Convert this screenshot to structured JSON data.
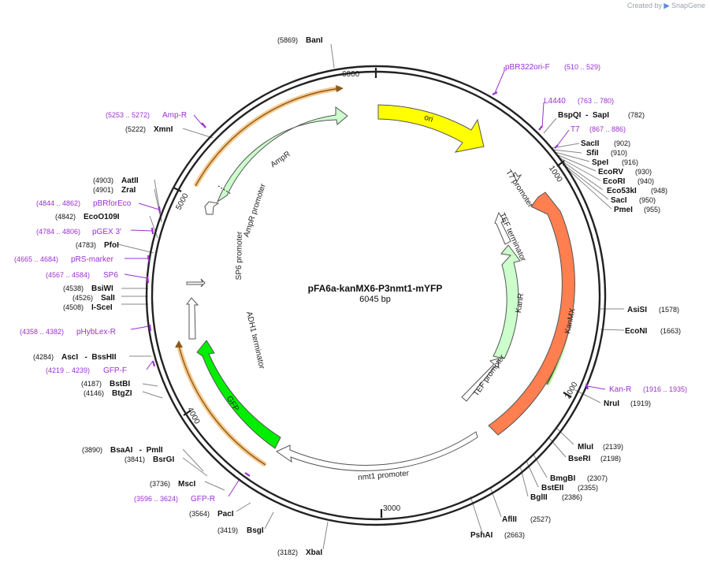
{
  "attribution": {
    "created_by": "Created by",
    "brand": "SnapGene"
  },
  "plasmid": {
    "name": "pFA6a-kanMX6-P3nmt1-mYFP",
    "size_label": "6045 bp",
    "length": 6045
  },
  "ticks": [
    "1000",
    "2000",
    "3000",
    "4000",
    "5000",
    "6000"
  ],
  "features": [
    {
      "id": "ori",
      "label": "ori",
      "color": "#ffff00"
    },
    {
      "id": "kanmx",
      "label": "KanMX",
      "color": "#ff7f50"
    },
    {
      "id": "kanr",
      "label": "KanR",
      "color": "#ccffcc"
    },
    {
      "id": "gfp",
      "label": "GFP",
      "color": "#00ee00"
    },
    {
      "id": "ampr",
      "label": "AmpR",
      "color": "#ccffcc"
    }
  ],
  "promoter_labels": {
    "t7": "T7 promoter",
    "tef_term": "TEF terminator",
    "tef_prom": "TEF promoter",
    "nmt1": "nmt1 promoter",
    "adh1": "ADH1 terminator",
    "sp6": "SP6 promoter",
    "ampr_prom": "AmpR promoter"
  },
  "enzymes": [
    {
      "pos": "(5869)",
      "name": "BanI"
    },
    {
      "pos": "(782)",
      "name": "BspQI  -  SapI"
    },
    {
      "pos": "(902)",
      "name": "SacII"
    },
    {
      "pos": "(910)",
      "name": "SfiI"
    },
    {
      "pos": "(916)",
      "name": "SpeI"
    },
    {
      "pos": "(930)",
      "name": "EcoRV"
    },
    {
      "pos": "(940)",
      "name": "EcoRI"
    },
    {
      "pos": "(948)",
      "name": "Eco53kI"
    },
    {
      "pos": "(950)",
      "name": "SacI"
    },
    {
      "pos": "(955)",
      "name": "PmeI"
    },
    {
      "pos": "(1578)",
      "name": "AsiSI"
    },
    {
      "pos": "(1663)",
      "name": "EcoNI"
    },
    {
      "pos": "(1919)",
      "name": "NruI"
    },
    {
      "pos": "(2139)",
      "name": "MluI"
    },
    {
      "pos": "(2198)",
      "name": "BseRI"
    },
    {
      "pos": "(2307)",
      "name": "BmgBI"
    },
    {
      "pos": "(2355)",
      "name": "BstEII"
    },
    {
      "pos": "(2386)",
      "name": "BglII"
    },
    {
      "pos": "(2527)",
      "name": "AflII"
    },
    {
      "pos": "(2663)",
      "name": "PshAI"
    },
    {
      "pos": "(3182)",
      "name": "XbaI"
    },
    {
      "pos": "(3419)",
      "name": "BsgI"
    },
    {
      "pos": "(3564)",
      "name": "PacI"
    },
    {
      "pos": "(3736)",
      "name": "MscI"
    },
    {
      "pos": "(3841)",
      "name": "BsrGI"
    },
    {
      "pos": "(3890)",
      "name": "BsaAI   -  PmlI"
    },
    {
      "pos": "(4146)",
      "name": "BtgZI"
    },
    {
      "pos": "(4187)",
      "name": "BstBI"
    },
    {
      "pos": "(4284)",
      "name": "AscI   -  BssHII"
    },
    {
      "pos": "(4508)",
      "name": "I-SceI"
    },
    {
      "pos": "(4526)",
      "name": "SalI"
    },
    {
      "pos": "(4538)",
      "name": "BsiWI"
    },
    {
      "pos": "(4783)",
      "name": "PfoI"
    },
    {
      "pos": "(4842)",
      "name": "EcoO109I"
    },
    {
      "pos": "(4901)",
      "name": "ZraI"
    },
    {
      "pos": "(4903)",
      "name": "AatII"
    },
    {
      "pos": "(5222)",
      "name": "XmnI"
    }
  ],
  "primers": [
    {
      "name": "pBR322ori-F",
      "range": "(510 .. 529)"
    },
    {
      "name": "L4440",
      "range": "(763 .. 780)"
    },
    {
      "name": "T7",
      "range": "(867 .. 886)"
    },
    {
      "name": "Kan-R",
      "range": "(1916 .. 1935)"
    },
    {
      "name": "GFP-R",
      "range": "(3596 .. 3624)"
    },
    {
      "name": "GFP-F",
      "range": "(4219 .. 4239)"
    },
    {
      "name": "pHybLex-R",
      "range": "(4358 .. 4382)"
    },
    {
      "name": "SP6",
      "range": "(4567 .. 4584)"
    },
    {
      "name": "pRS-marker",
      "range": "(4665 .. 4684)"
    },
    {
      "name": "pGEX 3'",
      "range": "(4784 .. 4806)"
    },
    {
      "name": "pBRforEco",
      "range": "(4844 .. 4862)"
    },
    {
      "name": "Amp-R",
      "range": "(5253 .. 5272)"
    }
  ],
  "colors": {
    "backbone": "#222222",
    "primer": "#9b30d0",
    "enzyme_line": "#888888",
    "orange_band": "#f7c98b"
  }
}
